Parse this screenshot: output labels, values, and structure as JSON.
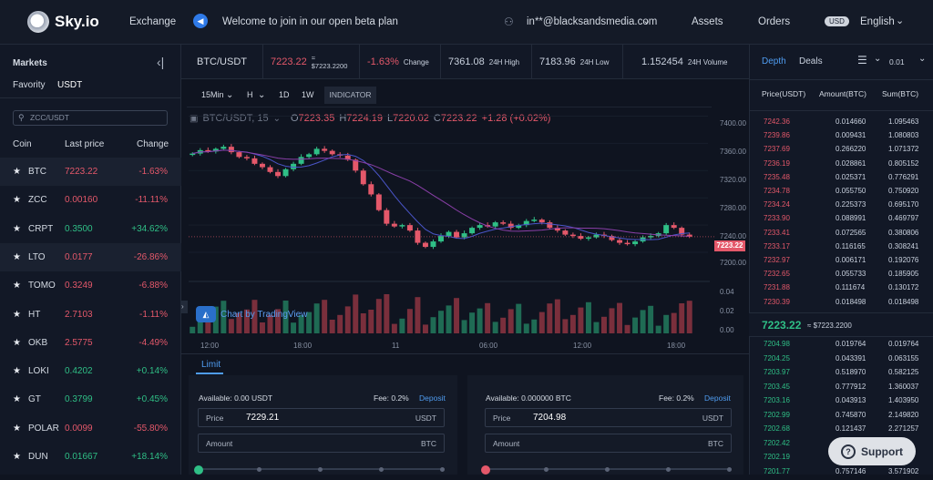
{
  "header": {
    "brand": "Sky.io",
    "nav_exchange": "Exchange",
    "announcement": "Welcome to join in our open beta plan",
    "user_email": "in**@blacksandsmedia.com",
    "nav_assets": "Assets",
    "nav_orders": "Orders",
    "currency_badge": "USD",
    "language": "English"
  },
  "markets": {
    "title": "Markets",
    "tab_favority": "Favority",
    "tab_usdt": "USDT",
    "search_value": "ZCC/USDT",
    "col_coin": "Coin",
    "col_last_price": "Last price",
    "col_change": "Change",
    "rows": [
      {
        "coin": "BTC",
        "price": "7223.22",
        "change": "-1.63%",
        "dir": "down"
      },
      {
        "coin": "ZCC",
        "price": "0.00160",
        "change": "-11.11%",
        "dir": "down"
      },
      {
        "coin": "CRPT",
        "price": "0.3500",
        "change": "+34.62%",
        "dir": "up"
      },
      {
        "coin": "LTO",
        "price": "0.0177",
        "change": "-26.86%",
        "dir": "down"
      },
      {
        "coin": "TOMO",
        "price": "0.3249",
        "change": "-6.88%",
        "dir": "down"
      },
      {
        "coin": "HT",
        "price": "2.7103",
        "change": "-1.11%",
        "dir": "down"
      },
      {
        "coin": "OKB",
        "price": "2.5775",
        "change": "-4.49%",
        "dir": "down"
      },
      {
        "coin": "LOKI",
        "price": "0.4202",
        "change": "+0.14%",
        "dir": "up"
      },
      {
        "coin": "GT",
        "price": "0.3799",
        "change": "+0.45%",
        "dir": "up"
      },
      {
        "coin": "POLAR",
        "price": "0.0099",
        "change": "-55.80%",
        "dir": "down"
      },
      {
        "coin": "DUN",
        "price": "0.01667",
        "change": "+18.14%",
        "dir": "up"
      }
    ]
  },
  "ticker": {
    "pair": "BTC/USDT",
    "last": "7223.22",
    "last_usd": "≈ $7223.2200",
    "change": "-1.63%",
    "change_label": "Change",
    "high": "7361.08",
    "high_label": "24H High",
    "low": "7183.96",
    "low_label": "24H Low",
    "volume": "1.152454",
    "volume_label": "24H Volume"
  },
  "chart": {
    "timeframes": [
      "15Min",
      "H",
      "1D",
      "1W"
    ],
    "indicator": "INDICATOR",
    "symbol": "BTC/USDT, 15",
    "o": "7223.35",
    "h": "7224.19",
    "l": "7220.02",
    "c": "7223.22",
    "delta": "+1.28 (+0.02%)",
    "tradingview": "Chart by TradingView",
    "last_badge": "7223.22",
    "y_ticks": [
      "7400.00",
      "7360.00",
      "7320.00",
      "7280.00",
      "7240.00",
      "7200.00"
    ],
    "vol_ticks": [
      "0.04",
      "0.02",
      "0.00"
    ],
    "x_ticks": [
      "12:00",
      "18:00",
      "11",
      "06:00",
      "12:00",
      "18:00"
    ]
  },
  "chart_data": {
    "type": "candlestick",
    "title": "BTC/USDT, 15",
    "x_ticks": [
      "12:00",
      "18:00",
      "11",
      "06:00",
      "12:00",
      "18:00"
    ],
    "ylim": [
      7180,
      7410
    ],
    "close_series": [
      7345,
      7350,
      7348,
      7352,
      7355,
      7347,
      7340,
      7338,
      7330,
      7325,
      7318,
      7312,
      7322,
      7330,
      7340,
      7344,
      7352,
      7349,
      7344,
      7342,
      7336,
      7320,
      7300,
      7285,
      7262,
      7242,
      7238,
      7240,
      7232,
      7214,
      7208,
      7216,
      7224,
      7230,
      7222,
      7228,
      7236,
      7240,
      7238,
      7244,
      7242,
      7236,
      7240,
      7246,
      7248,
      7244,
      7236,
      7232,
      7226,
      7224,
      7220,
      7222,
      7226,
      7224,
      7218,
      7214,
      7212,
      7216,
      7222,
      7224,
      7228,
      7240,
      7236,
      7226,
      7223
    ]
  },
  "order_form": {
    "tab_limit": "Limit",
    "buy": {
      "available": "Available: 0.00 USDT",
      "fee": "Fee: 0.2%",
      "deposit": "Deposit",
      "price_label": "Price",
      "price_value": "7229.21",
      "price_unit": "USDT",
      "amount_label": "Amount",
      "amount_unit": "BTC"
    },
    "sell": {
      "available": "Available: 0.000000 BTC",
      "fee": "Fee: 0.2%",
      "deposit": "Deposit",
      "price_label": "Price",
      "price_value": "7204.98",
      "price_unit": "USDT",
      "amount_label": "Amount",
      "amount_unit": "BTC"
    }
  },
  "depth": {
    "tab_depth": "Depth",
    "tab_deals": "Deals",
    "precision": "0.01",
    "col_price": "Price(USDT)",
    "col_amount": "Amount(BTC)",
    "col_sum": "Sum(BTC)",
    "asks": [
      [
        "7242.36",
        "0.014660",
        "1.095463"
      ],
      [
        "7239.86",
        "0.009431",
        "1.080803"
      ],
      [
        "7237.69",
        "0.266220",
        "1.071372"
      ],
      [
        "7236.19",
        "0.028861",
        "0.805152"
      ],
      [
        "7235.48",
        "0.025371",
        "0.776291"
      ],
      [
        "7234.78",
        "0.055750",
        "0.750920"
      ],
      [
        "7234.24",
        "0.225373",
        "0.695170"
      ],
      [
        "7233.90",
        "0.088991",
        "0.469797"
      ],
      [
        "7233.41",
        "0.072565",
        "0.380806"
      ],
      [
        "7233.17",
        "0.116165",
        "0.308241"
      ],
      [
        "7232.97",
        "0.006171",
        "0.192076"
      ],
      [
        "7232.65",
        "0.055733",
        "0.185905"
      ],
      [
        "7231.88",
        "0.111674",
        "0.130172"
      ],
      [
        "7230.39",
        "0.018498",
        "0.018498"
      ]
    ],
    "mid_price": "7223.22",
    "mid_usd": "≈ $7223.2200",
    "bids": [
      [
        "7204.98",
        "0.019764",
        "0.019764"
      ],
      [
        "7204.25",
        "0.043391",
        "0.063155"
      ],
      [
        "7203.97",
        "0.518970",
        "0.582125"
      ],
      [
        "7203.45",
        "0.777912",
        "1.360037"
      ],
      [
        "7203.16",
        "0.043913",
        "1.403950"
      ],
      [
        "7202.99",
        "0.745870",
        "2.149820"
      ],
      [
        "7202.68",
        "0.121437",
        "2.271257"
      ],
      [
        "7202.42",
        "",
        ""
      ],
      [
        "7202.19",
        "",
        ""
      ],
      [
        "7201.77",
        "0.757146",
        "3.571902"
      ]
    ]
  },
  "support": {
    "label": "Support"
  },
  "colors": {
    "up": "#2fbf86",
    "down": "#e4586a",
    "accent": "#4f9cf0"
  }
}
